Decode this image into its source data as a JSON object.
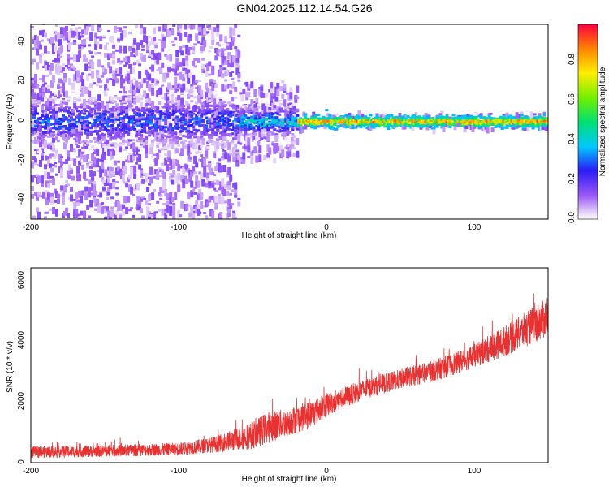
{
  "figure": {
    "title": "GN04.2025.112.14.54.G26"
  },
  "chart_data": [
    {
      "type": "heatmap",
      "xlabel": "Height of straight line (km)",
      "ylabel": "Frequency (Hz)",
      "xlim": [
        -200,
        150
      ],
      "ylim": [
        -50,
        50
      ],
      "x_ticks": [
        "-200",
        "-100",
        "0",
        "100"
      ],
      "y_ticks": [
        "40",
        "20",
        "0",
        "-20",
        "-40"
      ],
      "colorbar": {
        "label": "Normalized spectral amplitude",
        "range": [
          0,
          1
        ],
        "ticks": [
          "0.8",
          "0.6",
          "0.4",
          "0.2",
          "0.0"
        ],
        "colormap": "rainbow"
      },
      "description_bands": [
        {
          "x_from": -200,
          "x_to": -60,
          "freq_spread": 50,
          "core_spread": 10,
          "peak_amplitude": 0.35
        },
        {
          "x_from": -60,
          "x_to": -20,
          "freq_spread": 20,
          "core_spread": 6,
          "peak_amplitude": 0.5
        },
        {
          "x_from": -20,
          "x_to": 150,
          "freq_spread": 4,
          "core_spread": 2,
          "peak_amplitude": 0.95
        }
      ]
    },
    {
      "type": "line",
      "xlabel": "Height of straight line (km)",
      "ylabel": "SNR (10 * v/v)",
      "xlim": [
        -200,
        150
      ],
      "ylim": [
        0,
        6400
      ],
      "x_ticks": [
        "-200",
        "-100",
        "0",
        "100"
      ],
      "y_ticks": [
        "6000",
        "4000",
        "2000",
        "0"
      ],
      "color": "#e83232",
      "series": [
        {
          "x": [
            -200,
            -150,
            -100,
            -75,
            -50,
            -40,
            -25,
            -10,
            0,
            25,
            50,
            75,
            100,
            125,
            150
          ],
          "y": [
            350,
            380,
            450,
            600,
            900,
            1150,
            1350,
            1600,
            1900,
            2400,
            2750,
            3050,
            3500,
            4100,
            4800
          ],
          "spread": [
            300,
            300,
            320,
            400,
            700,
            800,
            700,
            700,
            600,
            500,
            500,
            550,
            600,
            800,
            1000
          ]
        }
      ]
    }
  ]
}
